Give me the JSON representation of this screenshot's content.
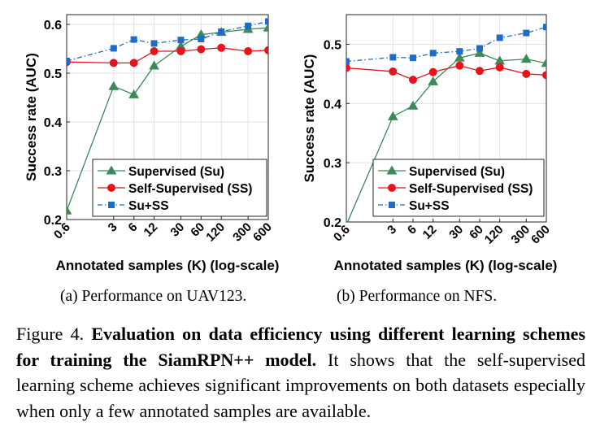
{
  "chart_data": [
    {
      "type": "line",
      "caption": "(a) Performance on UAV123.",
      "xlabel": "Annotated samples (K) (log-scale)",
      "ylabel": "Success rate (AUC)",
      "x_scale": "log",
      "x": [
        0.6,
        3,
        6,
        12,
        30,
        60,
        120,
        300,
        600
      ],
      "x_tick_labels": [
        "0.6",
        "3",
        "6",
        "12",
        "30",
        "60",
        "120",
        "300",
        "600"
      ],
      "ylim": [
        0.2,
        0.62
      ],
      "y_ticks": [
        0.2,
        0.3,
        0.4,
        0.5,
        0.6
      ],
      "y_tick_labels": [
        "0.2",
        "0.3",
        "0.4",
        "0.5",
        "0.6"
      ],
      "grid": true,
      "legend_position": "bottom-right",
      "series": [
        {
          "name": "Supervised (Su)",
          "color": "#3a8a5a",
          "marker": "triangle",
          "dash": "solid",
          "values": [
            0.218,
            0.473,
            0.456,
            0.515,
            0.555,
            0.579,
            0.584,
            0.59,
            0.593
          ]
        },
        {
          "name": "Self-Supervised (SS)",
          "color": "#e8141b",
          "marker": "circle",
          "dash": "solid",
          "values": [
            0.523,
            0.521,
            0.521,
            0.545,
            0.545,
            0.549,
            0.552,
            0.545,
            0.547
          ]
        },
        {
          "name": "Su+SS",
          "color": "#1f6cc6",
          "marker": "square",
          "dash": "dashdot",
          "values": [
            0.525,
            0.551,
            0.569,
            0.561,
            0.568,
            0.57,
            0.585,
            0.597,
            0.606
          ]
        }
      ]
    },
    {
      "type": "line",
      "caption": "(b) Performance on NFS.",
      "xlabel": "Annotated samples (K) (log-scale)",
      "ylabel": "Success rate (AUC)",
      "x_scale": "log",
      "x": [
        0.6,
        3,
        6,
        12,
        30,
        60,
        120,
        300,
        600
      ],
      "x_tick_labels": [
        "0.6",
        "3",
        "6",
        "12",
        "30",
        "60",
        "120",
        "300",
        "600"
      ],
      "ylim": [
        0.2,
        0.55
      ],
      "y_ticks": [
        0.2,
        0.3,
        0.4,
        0.5
      ],
      "y_tick_labels": [
        "0.2",
        "0.3",
        "0.4",
        "0.5"
      ],
      "grid": true,
      "legend_position": "bottom-right",
      "series": [
        {
          "name": "Supervised (Su)",
          "color": "#3a8a5a",
          "marker": "triangle",
          "dash": "solid",
          "values": [
            0.195,
            0.378,
            0.396,
            0.437,
            0.477,
            0.485,
            0.472,
            0.475,
            0.468
          ]
        },
        {
          "name": "Self-Supervised (SS)",
          "color": "#e8141b",
          "marker": "circle",
          "dash": "solid",
          "values": [
            0.46,
            0.454,
            0.44,
            0.453,
            0.464,
            0.455,
            0.461,
            0.45,
            0.448
          ]
        },
        {
          "name": "Su+SS",
          "color": "#1f6cc6",
          "marker": "square",
          "dash": "dashdot",
          "values": [
            0.471,
            0.478,
            0.477,
            0.485,
            0.488,
            0.493,
            0.511,
            0.519,
            0.529
          ]
        }
      ]
    }
  ],
  "figure_caption": {
    "label": "Figure 4.",
    "bold": "Evaluation on data efficiency using different learning schemes for training the SiamRPN++ model.",
    "rest": "It shows that the self-supervised learning scheme achieves significant improvements on both datasets especially when only a few annotated samples are available."
  }
}
